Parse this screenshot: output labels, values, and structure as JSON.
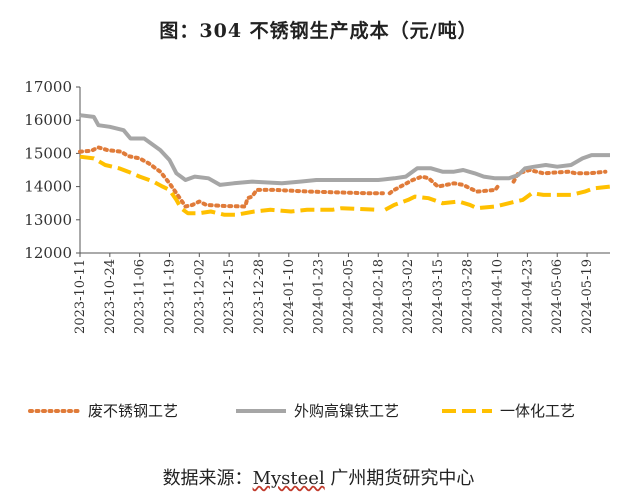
{
  "chart_data": {
    "type": "line",
    "title": "图：304 不锈钢生产成本（元/吨）",
    "ylim": [
      12000,
      17000
    ],
    "yticks": [
      12000,
      13000,
      14000,
      15000,
      16000,
      17000
    ],
    "yticklabels": [
      "12000",
      "13000",
      "14000",
      "15000",
      "16000",
      "17000"
    ],
    "xlim": [
      0,
      231
    ],
    "xtick_positions": [
      0,
      13,
      26,
      39,
      52,
      65,
      78,
      91,
      104,
      117,
      130,
      143,
      156,
      169,
      182,
      195,
      208,
      221
    ],
    "xticklabels": [
      "2023-10-11",
      "2023-10-24",
      "2023-11-06",
      "2023-11-19",
      "2023-12-02",
      "2023-12-15",
      "2023-12-28",
      "2024-01-10",
      "2024-01-23",
      "2024-02-05",
      "2024-02-18",
      "2024-03-02",
      "2024-03-15",
      "2024-03-28",
      "2024-04-10",
      "2024-04-23",
      "2024-05-06",
      "2024-05-19"
    ],
    "series": [
      {
        "name": "废不锈钢工艺",
        "color": "#E07B39",
        "style": "dotted",
        "points": [
          [
            0,
            15050
          ],
          [
            5,
            15080
          ],
          [
            8,
            15180
          ],
          [
            12,
            15100
          ],
          [
            18,
            15050
          ],
          [
            21,
            14920
          ],
          [
            26,
            14850
          ],
          [
            30,
            14700
          ],
          [
            35,
            14450
          ],
          [
            39,
            14100
          ],
          [
            43,
            13700
          ],
          [
            46,
            13400
          ],
          [
            49,
            13450
          ],
          [
            52,
            13550
          ],
          [
            55,
            13450
          ],
          [
            62,
            13420
          ],
          [
            72,
            13400
          ],
          [
            73,
            13650
          ],
          [
            75,
            13700
          ],
          [
            77,
            13900
          ],
          [
            85,
            13900
          ],
          [
            100,
            13850
          ],
          [
            125,
            13800
          ],
          [
            132,
            13800
          ],
          null,
          [
            135,
            13800
          ],
          [
            137,
            13900
          ],
          [
            145,
            14200
          ],
          [
            149,
            14300
          ],
          [
            152,
            14250
          ],
          [
            156,
            14000
          ],
          [
            163,
            14100
          ],
          [
            167,
            14050
          ],
          [
            170,
            13950
          ],
          [
            173,
            13850
          ],
          [
            181,
            13900
          ],
          [
            182,
            14000
          ],
          null,
          [
            189,
            14150
          ],
          [
            191,
            14400
          ],
          [
            196,
            14500
          ],
          [
            202,
            14400
          ],
          [
            213,
            14450
          ],
          [
            216,
            14400
          ],
          [
            222,
            14400
          ],
          [
            229,
            14450
          ]
        ]
      },
      {
        "name": "外购高镍铁工艺",
        "color": "#A6A6A6",
        "style": "solid",
        "points": [
          [
            0,
            16150
          ],
          [
            6,
            16100
          ],
          [
            8,
            15850
          ],
          [
            13,
            15800
          ],
          [
            19,
            15700
          ],
          [
            22,
            15450
          ],
          [
            28,
            15450
          ],
          [
            35,
            15100
          ],
          [
            39,
            14800
          ],
          [
            42,
            14400
          ],
          [
            46,
            14200
          ],
          [
            50,
            14300
          ],
          [
            56,
            14250
          ],
          [
            61,
            14050
          ],
          [
            67,
            14100
          ],
          [
            75,
            14150
          ],
          [
            88,
            14100
          ],
          [
            96,
            14150
          ],
          [
            103,
            14200
          ],
          [
            110,
            14200
          ],
          [
            130,
            14200
          ],
          [
            137,
            14250
          ],
          [
            142,
            14300
          ],
          [
            147,
            14550
          ],
          [
            153,
            14550
          ],
          [
            158,
            14450
          ],
          [
            163,
            14450
          ],
          [
            167,
            14500
          ],
          [
            172,
            14400
          ],
          [
            176,
            14300
          ],
          [
            181,
            14250
          ],
          [
            187,
            14250
          ],
          [
            191,
            14350
          ],
          [
            194,
            14550
          ],
          [
            198,
            14600
          ],
          [
            203,
            14650
          ],
          [
            208,
            14600
          ],
          [
            214,
            14650
          ],
          [
            219,
            14850
          ],
          [
            223,
            14950
          ],
          [
            231,
            14950
          ]
        ]
      },
      {
        "name": "一体化工艺",
        "color": "#FFC000",
        "style": "dashed",
        "points": [
          [
            0,
            14900
          ],
          [
            6,
            14850
          ],
          [
            11,
            14650
          ],
          [
            17,
            14550
          ],
          [
            21,
            14450
          ],
          [
            26,
            14300
          ],
          [
            32,
            14150
          ],
          [
            36,
            14000
          ],
          [
            39,
            13900
          ],
          [
            42,
            13600
          ],
          [
            44,
            13350
          ],
          [
            47,
            13200
          ],
          [
            52,
            13200
          ],
          [
            57,
            13250
          ],
          [
            63,
            13150
          ],
          [
            68,
            13150
          ],
          [
            76,
            13250
          ],
          [
            83,
            13300
          ],
          [
            92,
            13250
          ],
          [
            99,
            13300
          ],
          [
            110,
            13300
          ],
          [
            114,
            13350
          ],
          [
            130,
            13300
          ],
          null,
          [
            133,
            13300
          ],
          [
            137,
            13450
          ],
          [
            143,
            13600
          ],
          [
            146,
            13700
          ],
          [
            152,
            13650
          ],
          [
            158,
            13500
          ],
          [
            165,
            13550
          ],
          [
            170,
            13450
          ],
          [
            173,
            13350
          ],
          [
            181,
            13400
          ],
          [
            190,
            13550
          ],
          [
            193,
            13600
          ],
          [
            197,
            13800
          ],
          [
            202,
            13750
          ],
          [
            210,
            13750
          ],
          [
            214,
            13750
          ],
          [
            220,
            13850
          ],
          [
            224,
            13950
          ],
          [
            231,
            14000
          ]
        ]
      }
    ]
  },
  "source": {
    "prefix": "数据来源：",
    "brand": "Mysteel",
    "suffix": " 广州期货研究中心"
  }
}
